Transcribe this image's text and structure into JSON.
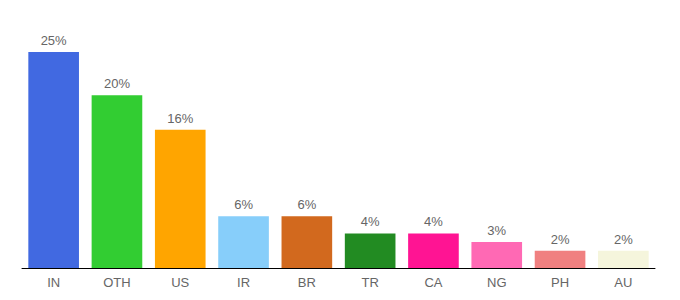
{
  "chart_data": {
    "type": "bar",
    "categories": [
      "IN",
      "OTH",
      "US",
      "IR",
      "BR",
      "TR",
      "CA",
      "NG",
      "PH",
      "AU"
    ],
    "values": [
      25,
      20,
      16,
      6,
      6,
      4,
      4,
      3,
      2,
      2
    ],
    "value_labels": [
      "25%",
      "20%",
      "16%",
      "6%",
      "6%",
      "4%",
      "4%",
      "3%",
      "2%",
      "2%"
    ],
    "colors": [
      "#4169e1",
      "#32cd32",
      "#ffa500",
      "#87cefa",
      "#d2691e",
      "#228b22",
      "#ff1493",
      "#ff69b4",
      "#f08080",
      "#f5f5dc"
    ],
    "ylim": [
      0,
      25
    ],
    "grid": false,
    "data_labels": true,
    "tick_labels": "x"
  }
}
